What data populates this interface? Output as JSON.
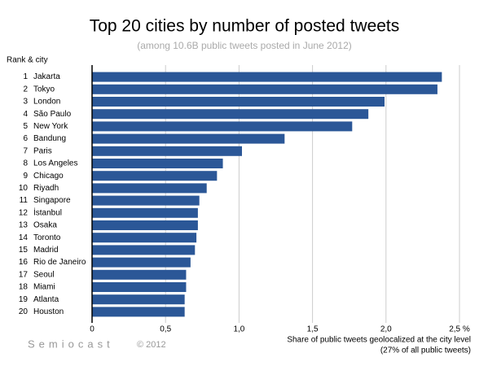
{
  "chart_data": {
    "type": "barh",
    "title": "Top 20 cities by number of posted tweets",
    "subtitle": "(among 10.6B public tweets posted in June 2012)",
    "ylabel": "Rank & city",
    "xlabel": "Share of public tweets geolocalized at the city level",
    "xlabel_note": "(27% of all public tweets)",
    "source": "Semiocast",
    "copyright": "© 2012",
    "ranks": [
      1,
      2,
      3,
      4,
      5,
      6,
      7,
      8,
      9,
      10,
      11,
      12,
      13,
      14,
      15,
      16,
      17,
      18,
      19,
      20
    ],
    "categories": [
      "Jakarta",
      "Tokyo",
      "London",
      "São Paulo",
      "New York",
      "Bandung",
      "Paris",
      "Los Angeles",
      "Chicago",
      "Riyadh",
      "Singapore",
      "İstanbul",
      "Osaka",
      "Toronto",
      "Madrid",
      "Rio de Janeiro",
      "Seoul",
      "Miami",
      "Atlanta",
      "Houston"
    ],
    "values": [
      2.38,
      2.35,
      1.99,
      1.88,
      1.77,
      1.31,
      1.02,
      0.89,
      0.85,
      0.78,
      0.73,
      0.72,
      0.72,
      0.71,
      0.7,
      0.67,
      0.64,
      0.64,
      0.63,
      0.63
    ],
    "color": "#2b5797",
    "xlim": [
      0,
      2.5
    ],
    "xticks": [
      0,
      {
        "value": 0.5,
        "label": "0,5"
      },
      {
        "value": 1.0,
        "label": "1,0"
      },
      {
        "value": 1.5,
        "label": "1,5"
      },
      {
        "value": 2.0,
        "label": "2,0"
      },
      {
        "value": 2.5,
        "label": "2,5 %"
      }
    ],
    "grid": true
  }
}
